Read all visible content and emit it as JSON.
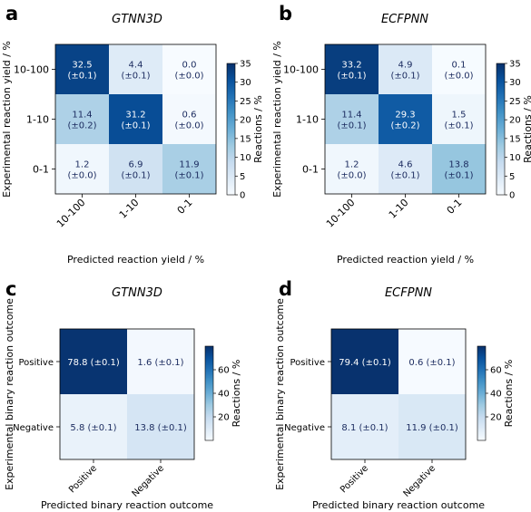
{
  "chart_data": [
    {
      "type": "heatmap",
      "panel_label": "a",
      "title": "GTNN3D",
      "xlabel": "Predicted reaction yield / %",
      "ylabel": "Experimental reaction yield / %",
      "x_categories": [
        "10-100",
        "1-10",
        "0-1"
      ],
      "y_categories": [
        "10-100",
        "1-10",
        "0-1"
      ],
      "values": [
        [
          32.5,
          4.4,
          0.0
        ],
        [
          11.4,
          31.2,
          0.6
        ],
        [
          1.2,
          6.9,
          11.9
        ]
      ],
      "errors": [
        [
          "(±0.1)",
          "(±0.1)",
          "(±0.0)"
        ],
        [
          "(±0.2)",
          "(±0.1)",
          "(±0.0)"
        ],
        [
          "(±0.0)",
          "(±0.1)",
          "(±0.1)"
        ]
      ],
      "colorbar": {
        "label": "Reactions / %",
        "range": [
          0,
          35
        ],
        "ticks": [
          0,
          5,
          10,
          15,
          20,
          25,
          30,
          35
        ]
      }
    },
    {
      "type": "heatmap",
      "panel_label": "b",
      "title": "ECFPNN",
      "xlabel": "Predicted reaction yield / %",
      "ylabel": "Experimental reaction yield / %",
      "x_categories": [
        "10-100",
        "1-10",
        "0-1"
      ],
      "y_categories": [
        "10-100",
        "1-10",
        "0-1"
      ],
      "values": [
        [
          33.2,
          4.9,
          0.1
        ],
        [
          11.4,
          29.3,
          1.5
        ],
        [
          1.2,
          4.6,
          13.8
        ]
      ],
      "errors": [
        [
          "(±0.1)",
          "(±0.1)",
          "(±0.0)"
        ],
        [
          "(±0.1)",
          "(±0.2)",
          "(±0.1)"
        ],
        [
          "(±0.0)",
          "(±0.1)",
          "(±0.1)"
        ]
      ],
      "colorbar": {
        "label": "Reactions / %",
        "range": [
          0,
          35
        ],
        "ticks": [
          0,
          5,
          10,
          15,
          20,
          25,
          30,
          35
        ]
      }
    },
    {
      "type": "heatmap",
      "panel_label": "c",
      "title": "GTNN3D",
      "xlabel": "Predicted binary reaction outcome",
      "ylabel": "Experimental binary reaction outcome",
      "x_categories": [
        "Positive",
        "Negative"
      ],
      "y_categories": [
        "Positive",
        "Negative"
      ],
      "values": [
        [
          78.8,
          1.6
        ],
        [
          5.8,
          13.8
        ]
      ],
      "errors": [
        [
          "(±0.1)",
          "(±0.1)"
        ],
        [
          "(±0.1)",
          "(±0.1)"
        ]
      ],
      "colorbar": {
        "label": "Reactions / %",
        "range": [
          0,
          80
        ],
        "ticks": [
          20,
          40,
          60
        ]
      }
    },
    {
      "type": "heatmap",
      "panel_label": "d",
      "title": "ECFPNN",
      "xlabel": "Predicted binary reaction outcome",
      "ylabel": "Experimental binary reaction outcome",
      "x_categories": [
        "Positive",
        "Negative"
      ],
      "y_categories": [
        "Positive",
        "Negative"
      ],
      "values": [
        [
          79.4,
          0.6
        ],
        [
          8.1,
          11.9
        ]
      ],
      "errors": [
        [
          "(±0.1)",
          "(±0.1)"
        ],
        [
          "(±0.1)",
          "(±0.1)"
        ]
      ],
      "colorbar": {
        "label": "Reactions / %",
        "range": [
          0,
          80
        ],
        "ticks": [
          20,
          40,
          60
        ]
      }
    }
  ]
}
